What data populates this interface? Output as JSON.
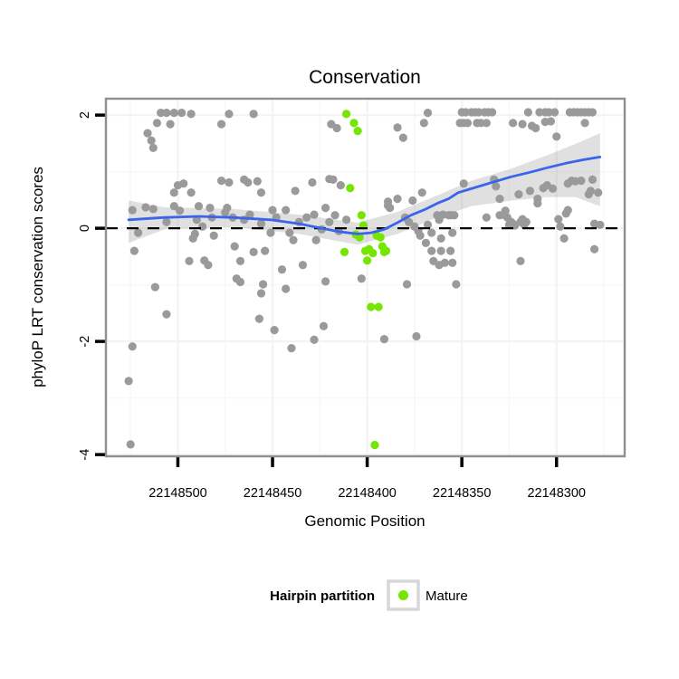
{
  "title": "Conservation",
  "colors": {
    "background": "#ffffff",
    "panel_border": "#8f8f8f",
    "grid_major": "#f3f3f3",
    "grid_minor": "#f8f8f8",
    "tick_mark": "#000000",
    "zero_line": "#000000",
    "point_other": "#9a9a9a",
    "point_mature": "#74e600",
    "smooth_line": "#3a64ec",
    "ribbon_fill": "#999999",
    "legend_box_border": "#d7d7d7"
  },
  "chart_data": {
    "type": "scatter",
    "title": "Conservation",
    "xlabel": "Genomic Position",
    "ylabel": "phyloP LRT conservation scores",
    "x_axis_reversed": true,
    "xlim": [
      22148538,
      22148264
    ],
    "ylim_top": 2.29,
    "ylim_bottom": -4.03,
    "x_ticks": [
      22148500,
      22148450,
      22148400,
      22148350,
      22148300
    ],
    "x_tick_labels": [
      "22148500",
      "22148450",
      "22148400",
      "22148350",
      "22148300"
    ],
    "x_minor_gridlines": [
      22148525,
      22148475,
      22148425,
      22148375,
      22148325,
      22148275
    ],
    "y_ticks": [
      2,
      0,
      -2,
      -4
    ],
    "y_tick_labels": [
      "2",
      "0",
      "-2",
      "-4"
    ],
    "y_minor_gridlines": [
      1,
      -1,
      -3
    ],
    "zero_line_y": 0,
    "grid": true,
    "legend": {
      "title": "Hairpin partition",
      "position": "bottom",
      "entries": [
        {
          "label": "Mature",
          "color": "#74e600"
        }
      ]
    },
    "series": [
      {
        "name": "other",
        "color": "#9a9a9a",
        "points": [
          [
            22148509,
            2.04
          ],
          [
            22148506,
            2.04
          ],
          [
            22148502,
            2.04
          ],
          [
            22148498,
            2.04
          ],
          [
            22148493,
            2.02
          ],
          [
            22148473,
            2.02
          ],
          [
            22148460,
            2.02
          ],
          [
            22148511,
            1.86
          ],
          [
            22148504,
            1.84
          ],
          [
            22148477,
            1.84
          ],
          [
            22148516,
            1.68
          ],
          [
            22148514,
            1.55
          ],
          [
            22148513,
            1.42
          ],
          [
            22148419,
            1.84
          ],
          [
            22148416,
            1.77
          ],
          [
            22148384,
            1.78
          ],
          [
            22148381,
            1.6
          ],
          [
            22148370,
            1.86
          ],
          [
            22148368,
            2.04
          ],
          [
            22148350,
            2.05
          ],
          [
            22148348,
            2.05
          ],
          [
            22148345,
            2.05
          ],
          [
            22148343,
            2.05
          ],
          [
            22148341,
            2.05
          ],
          [
            22148338,
            2.05
          ],
          [
            22148336,
            2.05
          ],
          [
            22148334,
            2.05
          ],
          [
            22148315,
            2.05
          ],
          [
            22148309,
            2.05
          ],
          [
            22148306,
            2.05
          ],
          [
            22148304,
            2.05
          ],
          [
            22148301,
            2.05
          ],
          [
            22148293,
            2.05
          ],
          [
            22148291,
            2.05
          ],
          [
            22148289,
            2.05
          ],
          [
            22148287,
            2.05
          ],
          [
            22148285,
            2.05
          ],
          [
            22148283,
            2.05
          ],
          [
            22148281,
            2.05
          ],
          [
            22148351,
            1.86
          ],
          [
            22148349,
            1.86
          ],
          [
            22148347,
            1.86
          ],
          [
            22148342,
            1.86
          ],
          [
            22148340,
            1.86
          ],
          [
            22148337,
            1.86
          ],
          [
            22148323,
            1.86
          ],
          [
            22148318,
            1.84
          ],
          [
            22148313,
            1.81
          ],
          [
            22148311,
            1.77
          ],
          [
            22148306,
            1.88
          ],
          [
            22148303,
            1.89
          ],
          [
            22148285,
            1.86
          ],
          [
            22148300,
            1.62
          ],
          [
            22148500,
            0.76
          ],
          [
            22148497,
            0.79
          ],
          [
            22148502,
            0.63
          ],
          [
            22148493,
            0.63
          ],
          [
            22148477,
            0.84
          ],
          [
            22148473,
            0.81
          ],
          [
            22148465,
            0.86
          ],
          [
            22148463,
            0.81
          ],
          [
            22148458,
            0.83
          ],
          [
            22148456,
            0.63
          ],
          [
            22148438,
            0.66
          ],
          [
            22148429,
            0.81
          ],
          [
            22148420,
            0.87
          ],
          [
            22148418,
            0.86
          ],
          [
            22148414,
            0.76
          ],
          [
            22148389,
            0.47
          ],
          [
            22148384,
            0.52
          ],
          [
            22148388,
            0.36
          ],
          [
            22148376,
            0.49
          ],
          [
            22148371,
            0.63
          ],
          [
            22148362,
            0.15
          ],
          [
            22148357,
            0.23
          ],
          [
            22148349,
            0.79
          ],
          [
            22148333,
            0.86
          ],
          [
            22148332,
            0.74
          ],
          [
            22148330,
            0.52
          ],
          [
            22148320,
            0.6
          ],
          [
            22148314,
            0.66
          ],
          [
            22148310,
            0.52
          ],
          [
            22148307,
            0.71
          ],
          [
            22148305,
            0.76
          ],
          [
            22148302,
            0.7
          ],
          [
            22148294,
            0.79
          ],
          [
            22148292,
            0.84
          ],
          [
            22148290,
            0.83
          ],
          [
            22148287,
            0.84
          ],
          [
            22148281,
            0.86
          ],
          [
            22148282,
            0.66
          ],
          [
            22148278,
            0.63
          ],
          [
            22148283,
            0.6
          ],
          [
            22148524,
            0.32
          ],
          [
            22148517,
            0.37
          ],
          [
            22148513,
            0.34
          ],
          [
            22148521,
            -0.08
          ],
          [
            22148523,
            -0.4
          ],
          [
            22148502,
            0.39
          ],
          [
            22148499,
            0.31
          ],
          [
            22148506,
            0.11
          ],
          [
            22148490,
            0.15
          ],
          [
            22148489,
            0.39
          ],
          [
            22148483,
            0.36
          ],
          [
            22148482,
            0.19
          ],
          [
            22148491,
            -0.1
          ],
          [
            22148492,
            -0.18
          ],
          [
            22148487,
            0.03
          ],
          [
            22148486,
            -0.57
          ],
          [
            22148484,
            -0.65
          ],
          [
            22148494,
            -0.58
          ],
          [
            22148481,
            -0.13
          ],
          [
            22148475,
            0.28
          ],
          [
            22148474,
            0.36
          ],
          [
            22148471,
            0.19
          ],
          [
            22148470,
            -0.32
          ],
          [
            22148469,
            -0.89
          ],
          [
            22148467,
            -0.58
          ],
          [
            22148465,
            0.15
          ],
          [
            22148462,
            0.24
          ],
          [
            22148460,
            -0.42
          ],
          [
            22148456,
            0.08
          ],
          [
            22148454,
            -0.4
          ],
          [
            22148451,
            -0.08
          ],
          [
            22148450,
            0.32
          ],
          [
            22148448,
            0.19
          ],
          [
            22148445,
            -0.73
          ],
          [
            22148443,
            0.32
          ],
          [
            22148441,
            -0.08
          ],
          [
            22148439,
            -0.21
          ],
          [
            22148436,
            0.11
          ],
          [
            22148434,
            -0.65
          ],
          [
            22148432,
            0.19
          ],
          [
            22148428,
            0.24
          ],
          [
            22148427,
            -0.21
          ],
          [
            22148424,
            -0.02
          ],
          [
            22148422,
            0.36
          ],
          [
            22148420,
            0.11
          ],
          [
            22148417,
            0.23
          ],
          [
            22148415,
            -0.05
          ],
          [
            22148411,
            0.15
          ],
          [
            22148403,
            -0.89
          ],
          [
            22148389,
            0.4
          ],
          [
            22148380,
            0.19
          ],
          [
            22148378,
            0.11
          ],
          [
            22148375,
            0.03
          ],
          [
            22148373,
            -0.05
          ],
          [
            22148372,
            -0.13
          ],
          [
            22148368,
            0.06
          ],
          [
            22148366,
            -0.08
          ],
          [
            22148366,
            -0.4
          ],
          [
            22148363,
            0.23
          ],
          [
            22148361,
            -0.18
          ],
          [
            22148360,
            0.24
          ],
          [
            22148356,
            0.23
          ],
          [
            22148354,
            0.23
          ],
          [
            22148361,
            -0.4
          ],
          [
            22148356,
            -0.4
          ],
          [
            22148365,
            -0.58
          ],
          [
            22148362,
            -0.65
          ],
          [
            22148359,
            -0.61
          ],
          [
            22148355,
            -0.61
          ],
          [
            22148369,
            -0.26
          ],
          [
            22148355,
            -0.08
          ],
          [
            22148337,
            0.19
          ],
          [
            22148330,
            0.23
          ],
          [
            22148328,
            0.24
          ],
          [
            22148326,
            0.19
          ],
          [
            22148325,
            0.06
          ],
          [
            22148323,
            0.08
          ],
          [
            22148318,
            0.16
          ],
          [
            22148316,
            0.11
          ],
          [
            22148319,
            -0.58
          ],
          [
            22148310,
            0.44
          ],
          [
            22148299,
            0.16
          ],
          [
            22148298,
            0.03
          ],
          [
            22148296,
            -0.18
          ],
          [
            22148294,
            0.32
          ],
          [
            22148280,
            -0.37
          ],
          [
            22148280,
            0.08
          ],
          [
            22148277,
            0.06
          ],
          [
            22148327,
            0.31
          ],
          [
            22148324,
            0.11
          ],
          [
            22148322,
            0.05
          ],
          [
            22148319,
            0.11
          ],
          [
            22148317,
            0.06
          ],
          [
            22148295,
            0.26
          ],
          [
            22148512,
            -1.04
          ],
          [
            22148506,
            -1.52
          ],
          [
            22148524,
            -2.09
          ],
          [
            22148526,
            -2.7
          ],
          [
            22148525,
            -3.82
          ],
          [
            22148467,
            -0.95
          ],
          [
            22148455,
            -0.99
          ],
          [
            22148456,
            -1.15
          ],
          [
            22148457,
            -1.6
          ],
          [
            22148449,
            -1.8
          ],
          [
            22148443,
            -1.07
          ],
          [
            22148422,
            -0.94
          ],
          [
            22148379,
            -0.99
          ],
          [
            22148353,
            -0.99
          ],
          [
            22148423,
            -1.73
          ],
          [
            22148428,
            -1.97
          ],
          [
            22148440,
            -2.12
          ],
          [
            22148391,
            -1.96
          ],
          [
            22148374,
            -1.91
          ]
        ]
      },
      {
        "name": "Mature",
        "color": "#74e600",
        "points": [
          [
            22148412,
            -0.42
          ],
          [
            22148411,
            2.02
          ],
          [
            22148409,
            0.71
          ],
          [
            22148407,
            1.86
          ],
          [
            22148406,
            -0.11
          ],
          [
            22148405,
            1.72
          ],
          [
            22148404,
            -0.16
          ],
          [
            22148403,
            0.23
          ],
          [
            22148402,
            0.05
          ],
          [
            22148401,
            -0.4
          ],
          [
            22148400,
            -0.57
          ],
          [
            22148399,
            -0.37
          ],
          [
            22148398,
            -1.39
          ],
          [
            22148397,
            -0.44
          ],
          [
            22148396,
            -3.83
          ],
          [
            22148395,
            -0.13
          ],
          [
            22148394,
            -1.39
          ],
          [
            22148393,
            -0.16
          ],
          [
            22148392,
            -0.32
          ],
          [
            22148391,
            -0.42
          ],
          [
            22148390,
            -0.4
          ]
        ]
      }
    ],
    "smooth": {
      "color": "#3a64ec",
      "line": [
        [
          22148526,
          0.15
        ],
        [
          22148508,
          0.19
        ],
        [
          22148489,
          0.21
        ],
        [
          22148470,
          0.19
        ],
        [
          22148451,
          0.15
        ],
        [
          22148436,
          0.08
        ],
        [
          22148424,
          0.0
        ],
        [
          22148415,
          -0.06
        ],
        [
          22148405,
          -0.1
        ],
        [
          22148398,
          -0.08
        ],
        [
          22148391,
          -0.02
        ],
        [
          22148384,
          0.1
        ],
        [
          22148377,
          0.23
        ],
        [
          22148369,
          0.34
        ],
        [
          22148363,
          0.44
        ],
        [
          22148357,
          0.52
        ],
        [
          22148352,
          0.63
        ],
        [
          22148345,
          0.7
        ],
        [
          22148334,
          0.81
        ],
        [
          22148324,
          0.91
        ],
        [
          22148314,
          0.99
        ],
        [
          22148305,
          1.07
        ],
        [
          22148295,
          1.15
        ],
        [
          22148286,
          1.21
        ],
        [
          22148277,
          1.26
        ]
      ],
      "ribbon": [
        [
          22148526,
          -0.26,
          0.49
        ],
        [
          22148507,
          -0.02,
          0.37
        ],
        [
          22148470,
          0.02,
          0.34
        ],
        [
          22148436,
          -0.1,
          0.24
        ],
        [
          22148405,
          -0.29,
          0.1
        ],
        [
          22148384,
          -0.1,
          0.29
        ],
        [
          22148363,
          0.19,
          0.58
        ],
        [
          22148345,
          0.39,
          0.84
        ],
        [
          22148324,
          0.49,
          1.05
        ],
        [
          22148305,
          0.55,
          1.29
        ],
        [
          22148290,
          0.55,
          1.49
        ],
        [
          22148277,
          0.39,
          1.68
        ]
      ]
    }
  }
}
